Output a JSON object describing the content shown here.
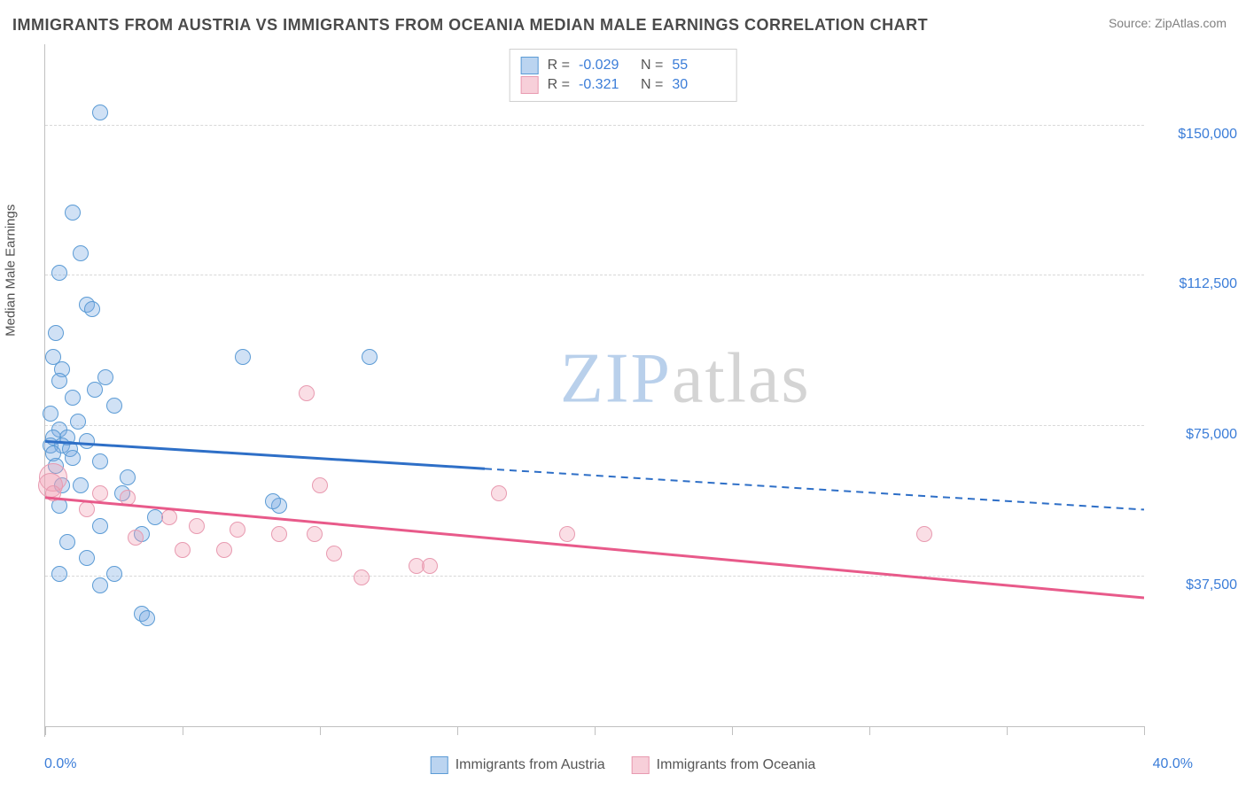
{
  "title": "IMMIGRANTS FROM AUSTRIA VS IMMIGRANTS FROM OCEANIA MEDIAN MALE EARNINGS CORRELATION CHART",
  "source": "Source: ZipAtlas.com",
  "y_axis_title": "Median Male Earnings",
  "watermark_z": "ZIP",
  "watermark_rest": "atlas",
  "chart": {
    "type": "scatter",
    "xlim": [
      0,
      40
    ],
    "ylim": [
      0,
      170000
    ],
    "x_unit": "%",
    "y_unit": "$",
    "x_tick_step": 5,
    "y_gridlines": [
      37500,
      75000,
      112500,
      150000
    ],
    "y_tick_labels": [
      "$37,500",
      "$75,000",
      "$112,500",
      "$150,000"
    ],
    "x_label_min": "0.0%",
    "x_label_max": "40.0%",
    "background_color": "#ffffff",
    "grid_color": "#d8d8d8",
    "axis_color": "#c0c0c0",
    "point_radius": 9,
    "series": [
      {
        "name": "Immigrants from Austria",
        "color_fill": "rgba(120,170,225,0.35)",
        "color_stroke": "#5b9bd5",
        "trend_color": "#2e6fc7",
        "R": "-0.029",
        "N": "55",
        "trend": {
          "x1": 0,
          "y1": 71000,
          "x2": 40,
          "y2": 54000,
          "solid_until_x": 16
        },
        "points": [
          {
            "x": 2.0,
            "y": 153000
          },
          {
            "x": 1.0,
            "y": 128000
          },
          {
            "x": 1.3,
            "y": 118000
          },
          {
            "x": 0.5,
            "y": 113000
          },
          {
            "x": 1.5,
            "y": 105000
          },
          {
            "x": 1.7,
            "y": 104000
          },
          {
            "x": 0.4,
            "y": 98000
          },
          {
            "x": 7.2,
            "y": 92000
          },
          {
            "x": 11.8,
            "y": 92000
          },
          {
            "x": 0.3,
            "y": 92000
          },
          {
            "x": 0.6,
            "y": 89000
          },
          {
            "x": 2.2,
            "y": 87000
          },
          {
            "x": 0.5,
            "y": 86000
          },
          {
            "x": 1.8,
            "y": 84000
          },
          {
            "x": 1.0,
            "y": 82000
          },
          {
            "x": 2.5,
            "y": 80000
          },
          {
            "x": 0.2,
            "y": 78000
          },
          {
            "x": 1.2,
            "y": 76000
          },
          {
            "x": 0.5,
            "y": 74000
          },
          {
            "x": 0.8,
            "y": 72000
          },
          {
            "x": 0.3,
            "y": 72000
          },
          {
            "x": 1.5,
            "y": 71000
          },
          {
            "x": 0.2,
            "y": 70000
          },
          {
            "x": 0.6,
            "y": 70000
          },
          {
            "x": 0.9,
            "y": 69000
          },
          {
            "x": 0.3,
            "y": 68000
          },
          {
            "x": 1.0,
            "y": 67000
          },
          {
            "x": 2.0,
            "y": 66000
          },
          {
            "x": 0.4,
            "y": 65000
          },
          {
            "x": 3.0,
            "y": 62000
          },
          {
            "x": 1.3,
            "y": 60000
          },
          {
            "x": 0.6,
            "y": 60000
          },
          {
            "x": 2.8,
            "y": 58000
          },
          {
            "x": 8.5,
            "y": 55000
          },
          {
            "x": 8.3,
            "y": 56000
          },
          {
            "x": 0.5,
            "y": 55000
          },
          {
            "x": 4.0,
            "y": 52000
          },
          {
            "x": 2.0,
            "y": 50000
          },
          {
            "x": 3.5,
            "y": 48000
          },
          {
            "x": 0.8,
            "y": 46000
          },
          {
            "x": 1.5,
            "y": 42000
          },
          {
            "x": 2.5,
            "y": 38000
          },
          {
            "x": 0.5,
            "y": 38000
          },
          {
            "x": 2.0,
            "y": 35000
          },
          {
            "x": 3.5,
            "y": 28000
          },
          {
            "x": 3.7,
            "y": 27000
          }
        ]
      },
      {
        "name": "Immigrants from Oceania",
        "color_fill": "rgba(240,160,180,0.35)",
        "color_stroke": "#e89ab0",
        "trend_color": "#e85a8a",
        "R": "-0.321",
        "N": "30",
        "trend": {
          "x1": 0,
          "y1": 57000,
          "x2": 40,
          "y2": 32000,
          "solid_until_x": 40
        },
        "points": [
          {
            "x": 9.5,
            "y": 83000
          },
          {
            "x": 0.3,
            "y": 62000,
            "r": 16
          },
          {
            "x": 0.2,
            "y": 60000,
            "r": 14
          },
          {
            "x": 10.0,
            "y": 60000
          },
          {
            "x": 0.3,
            "y": 58000
          },
          {
            "x": 16.5,
            "y": 58000
          },
          {
            "x": 2.0,
            "y": 58000
          },
          {
            "x": 3.0,
            "y": 57000
          },
          {
            "x": 1.5,
            "y": 54000
          },
          {
            "x": 4.5,
            "y": 52000
          },
          {
            "x": 5.5,
            "y": 50000
          },
          {
            "x": 7.0,
            "y": 49000
          },
          {
            "x": 8.5,
            "y": 48000
          },
          {
            "x": 9.8,
            "y": 48000
          },
          {
            "x": 3.3,
            "y": 47000
          },
          {
            "x": 19.0,
            "y": 48000
          },
          {
            "x": 32.0,
            "y": 48000
          },
          {
            "x": 5.0,
            "y": 44000
          },
          {
            "x": 6.5,
            "y": 44000
          },
          {
            "x": 10.5,
            "y": 43000
          },
          {
            "x": 13.5,
            "y": 40000
          },
          {
            "x": 14.0,
            "y": 40000
          },
          {
            "x": 11.5,
            "y": 37000
          }
        ]
      }
    ]
  },
  "legend_top": {
    "r_label": "R =",
    "n_label": "N ="
  },
  "legend_bottom_labels": [
    "Immigrants from Austria",
    "Immigrants from Oceania"
  ]
}
